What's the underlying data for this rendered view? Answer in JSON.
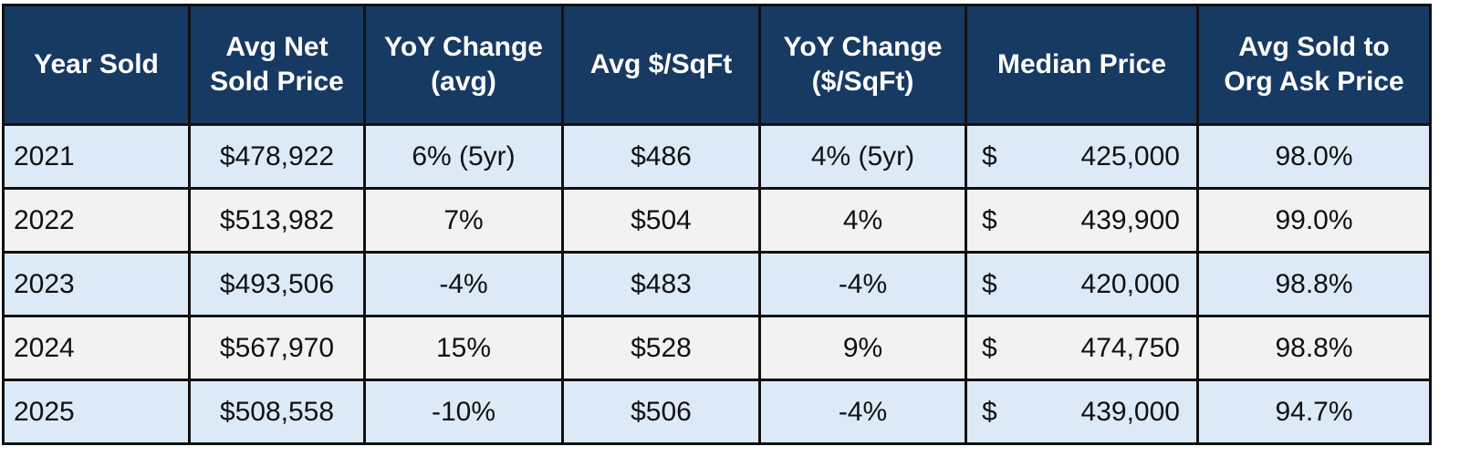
{
  "table": {
    "headers": [
      "Year Sold",
      "Avg Net\nSold Price",
      "YoY Change\n(avg)",
      "Avg $/SqFt",
      "YoY Change\n($/SqFt)",
      "Median Price",
      "Avg Sold to\nOrg Ask Price"
    ],
    "rows": [
      [
        "2021",
        "$478,922",
        "6% (5yr)",
        "$486",
        "4% (5yr)",
        {
          "currency": "$",
          "amount": "425,000"
        },
        "98.0%"
      ],
      [
        "2022",
        "$513,982",
        "7%",
        "$504",
        "4%",
        {
          "currency": "$",
          "amount": "439,900"
        },
        "99.0%"
      ],
      [
        "2023",
        "$493,506",
        "-4%",
        "$483",
        "-4%",
        {
          "currency": "$",
          "amount": "420,000"
        },
        "98.8%"
      ],
      [
        "2024",
        "$567,970",
        "15%",
        "$528",
        "9%",
        {
          "currency": "$",
          "amount": "474,750"
        },
        "98.8%"
      ],
      [
        "2025",
        "$508,558",
        "-10%",
        "$506",
        "-4%",
        {
          "currency": "$",
          "amount": "439,000"
        },
        "94.7%"
      ]
    ]
  }
}
